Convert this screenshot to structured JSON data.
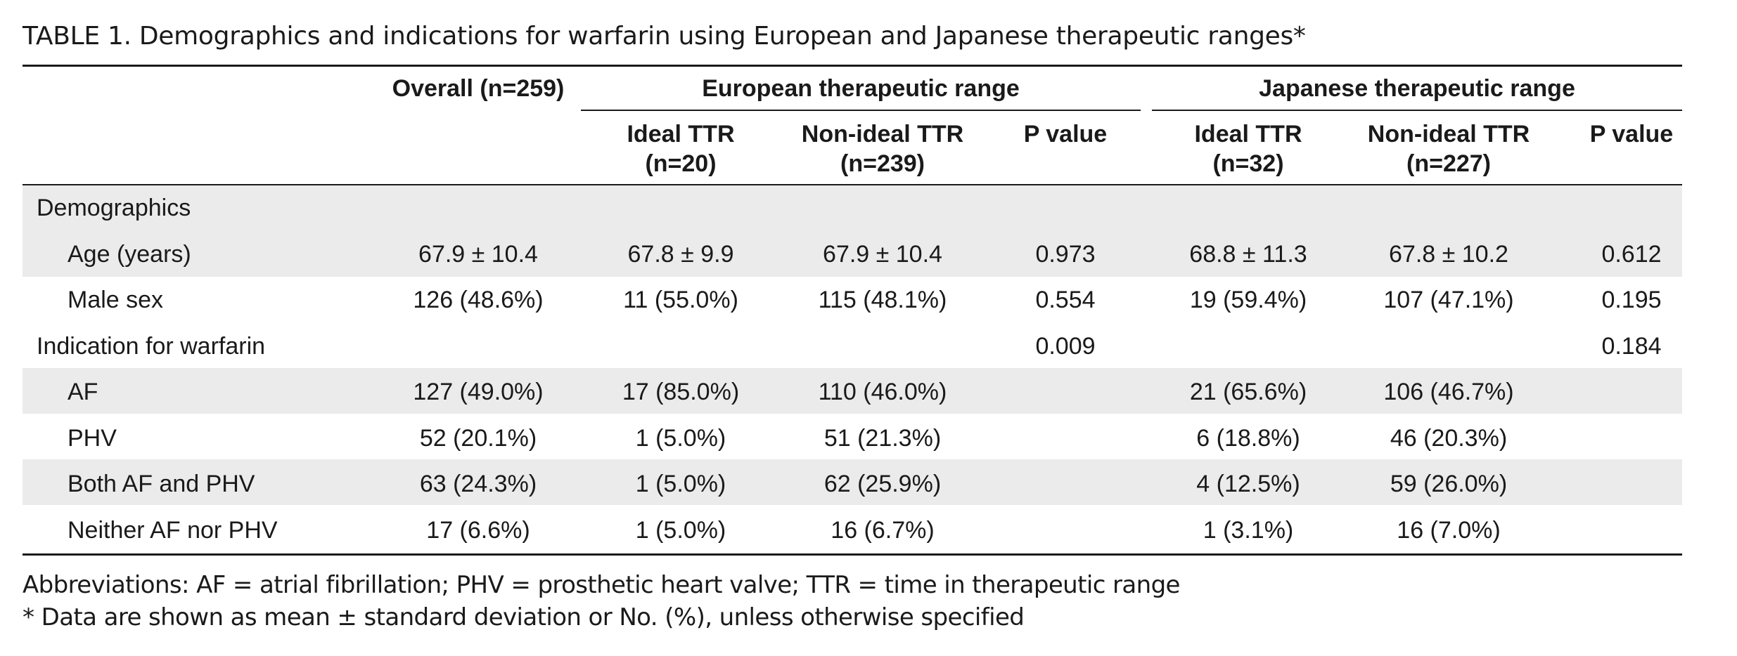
{
  "title": {
    "label": "TABLE 1.",
    "text": "Demographics and indications for warfarin using European and Japanese therapeutic ranges*"
  },
  "headers": {
    "overall": "Overall (n=259)",
    "european": "European therapeutic range",
    "japanese": "Japanese therapeutic range",
    "eu_ideal": [
      "Ideal TTR",
      "(n=20)"
    ],
    "eu_nonideal": [
      "Non-ideal TTR",
      "(n=239)"
    ],
    "eu_p": "P value",
    "jp_ideal": [
      "Ideal TTR",
      "(n=32)"
    ],
    "jp_nonideal": [
      "Non-ideal TTR",
      "(n=227)"
    ],
    "jp_p": "P value"
  },
  "rows": [
    {
      "label": "Demographics",
      "values": [
        "",
        "",
        "",
        "",
        "",
        "",
        ""
      ]
    },
    {
      "label": "Age (years)",
      "values": [
        "67.9 ± 10.4",
        "67.8 ± 9.9",
        "67.9 ± 10.4",
        "0.973",
        "68.8 ± 11.3",
        "67.8 ± 10.2",
        "0.612"
      ]
    },
    {
      "label": "Male sex",
      "values": [
        "126 (48.6%)",
        "11 (55.0%)",
        "115 (48.1%)",
        "0.554",
        "19 (59.4%)",
        "107 (47.1%)",
        "0.195"
      ]
    },
    {
      "label": "Indication for warfarin",
      "values": [
        "",
        "",
        "",
        "0.009",
        "",
        "",
        "0.184"
      ]
    },
    {
      "label": "AF",
      "values": [
        "127 (49.0%)",
        "17 (85.0%)",
        "110 (46.0%)",
        "",
        "21 (65.6%)",
        "106 (46.7%)",
        ""
      ]
    },
    {
      "label": "PHV",
      "values": [
        "52 (20.1%)",
        "1 (5.0%)",
        "51 (21.3%)",
        "",
        "6 (18.8%)",
        "46 (20.3%)",
        ""
      ]
    },
    {
      "label": "Both AF and PHV",
      "values": [
        "63 (24.3%)",
        "1 (5.0%)",
        "62 (25.9%)",
        "",
        "4 (12.5%)",
        "59 (26.0%)",
        ""
      ]
    },
    {
      "label": "Neither AF nor PHV",
      "values": [
        "17 (6.6%)",
        "1 (5.0%)",
        "16 (6.7%)",
        "",
        "1 (3.1%)",
        "16 (7.0%)",
        ""
      ]
    }
  ],
  "footnotes": {
    "abbreviations": "Abbreviations: AF = atrial fibrillation; PHV = prosthetic heart valve; TTR = time in therapeutic range",
    "note": "*   Data are shown as mean ± standard deviation or No. (%), unless otherwise specified"
  }
}
